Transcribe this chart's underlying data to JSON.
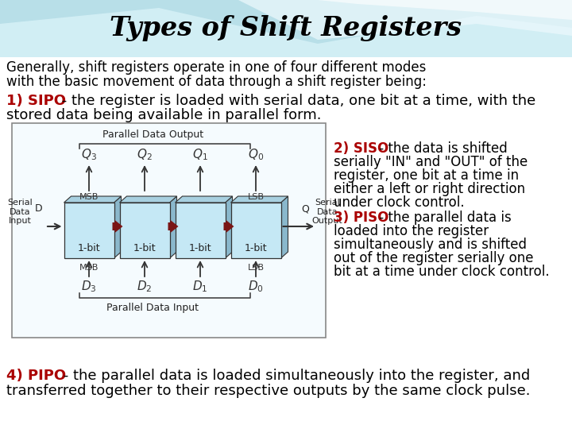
{
  "title": "Types of Shift Registers",
  "subtitle_line1": "Generally, shift registers operate in one of four different modes",
  "subtitle_line2": "with the basic movement of data through a shift register being:",
  "sipo_label": "1) SIPO",
  "sipo_rest": " - the register is loaded with serial data, one bit at a time, with the",
  "sipo_line2": "stored data being available in parallel form.",
  "siso_label": "2) SISO",
  "siso_rest_lines": [
    " - the data is shifted",
    "serially \"IN\" and \"OUT\" of the",
    "register, one bit at a time in",
    "either a left or right direction",
    "under clock control."
  ],
  "piso_label": "3) PISO",
  "piso_rest_lines": [
    " - the parallel data is",
    "loaded into the register",
    "simultaneously and is shifted",
    "out of the register serially one",
    "bit at a time under clock control."
  ],
  "pipo_label": "4) PIPO",
  "pipo_rest": " - the parallel data is loaded simultaneously into the register, and",
  "pipo_line2": "transferred together to their respective outputs by the same clock pulse.",
  "title_color": "#000000",
  "label_color": "#aa0000",
  "text_color": "#000000",
  "arrow_color": "#7a1515",
  "bg_top": "#a8dde8",
  "bg_wave1": "#c8eef8",
  "bg_wave2": "#e0f7fc"
}
